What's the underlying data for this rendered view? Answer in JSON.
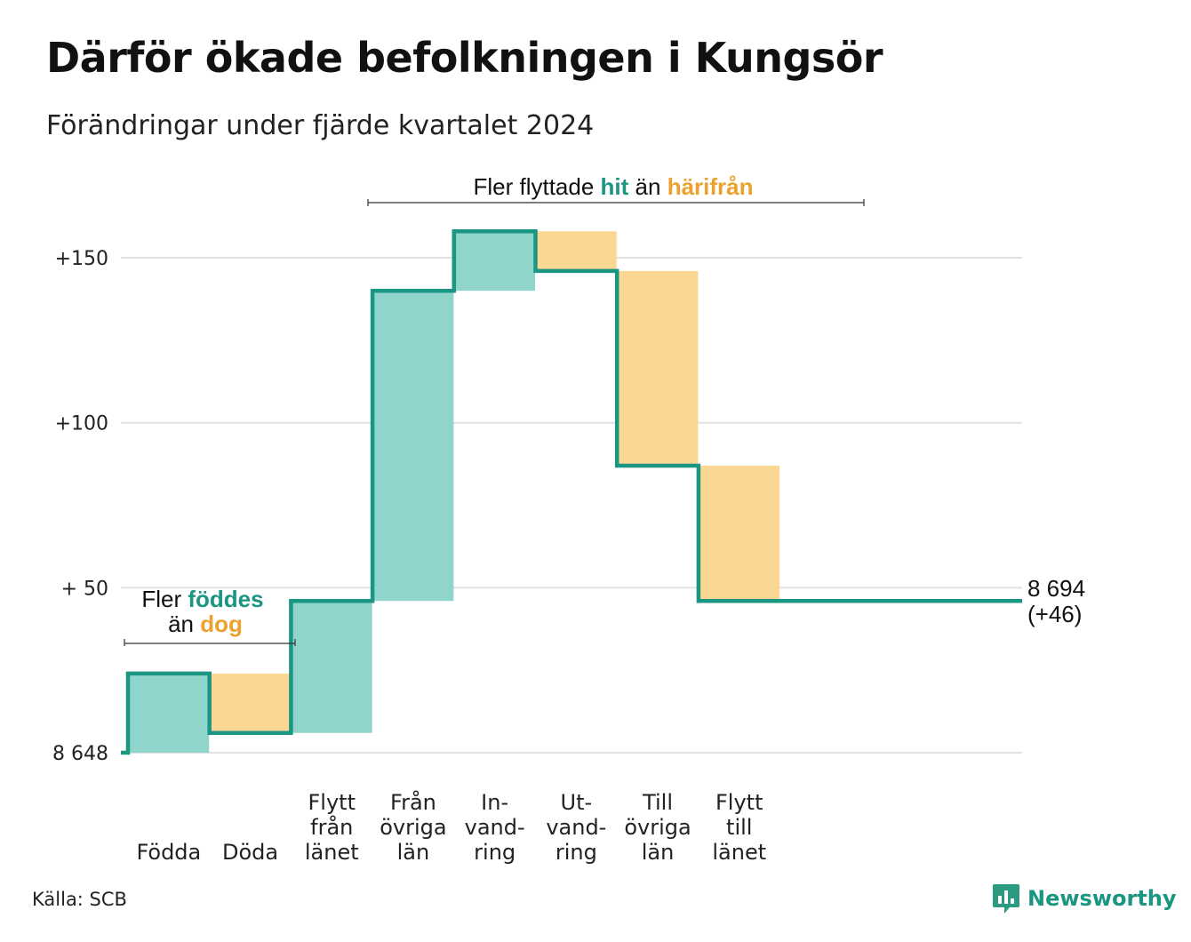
{
  "title": "Därför ökade befolkningen i Kungsör",
  "subtitle": "Förändringar under fjärde kvartalet 2024",
  "source": "Källa: SCB",
  "brand": "Newsworthy",
  "colors": {
    "increase": "#8fd5cc",
    "decrease": "#fad792",
    "line": "#1a9683",
    "highlight_increase": "#1a9683",
    "highlight_decrease": "#eba12b",
    "grid": "#e1e1e1",
    "text": "#111111"
  },
  "annotations": {
    "births": {
      "line1_prefix": "Fler ",
      "line1_highlight": "föddes",
      "line2_prefix": "än ",
      "line2_highlight": "dog"
    },
    "migration": {
      "prefix": "Fler flyttade ",
      "highlight1": "hit",
      "middle": " än ",
      "highlight2": "härifrån"
    }
  },
  "end_label": {
    "total": "8 694",
    "change": "(+46)"
  },
  "chart_data": {
    "type": "waterfall",
    "base_value": 8648,
    "end_value": 8694,
    "net_change": 46,
    "y_axis": {
      "ylim": [
        0,
        160
      ],
      "ticks": [
        {
          "value": 0,
          "label": "8 648"
        },
        {
          "value": 50,
          "label": "+ 50"
        },
        {
          "value": 100,
          "label": "+100"
        },
        {
          "value": 150,
          "label": "+150"
        }
      ]
    },
    "steps": [
      {
        "name": "Födda",
        "label_lines": [
          "Födda"
        ],
        "type": "increase",
        "from": 0,
        "to": 24
      },
      {
        "name": "Döda",
        "label_lines": [
          "Döda"
        ],
        "type": "decrease",
        "from": 24,
        "to": 6
      },
      {
        "name": "Flytt från länet",
        "label_lines": [
          "Flytt",
          "från",
          "länet"
        ],
        "type": "increase",
        "from": 6,
        "to": 46
      },
      {
        "name": "Från övriga län",
        "label_lines": [
          "Från",
          "övriga",
          "län"
        ],
        "type": "increase",
        "from": 46,
        "to": 140
      },
      {
        "name": "Invandring",
        "label_lines": [
          "In-",
          "vand-",
          "ring"
        ],
        "type": "increase",
        "from": 140,
        "to": 158
      },
      {
        "name": "Utvandring",
        "label_lines": [
          "Ut-",
          "vand-",
          "ring"
        ],
        "type": "decrease",
        "from": 158,
        "to": 146
      },
      {
        "name": "Till övriga län",
        "label_lines": [
          "Till",
          "övriga",
          "län"
        ],
        "type": "decrease",
        "from": 146,
        "to": 87
      },
      {
        "name": "Flytt till länet",
        "label_lines": [
          "Flytt",
          "till",
          "länet"
        ],
        "type": "decrease",
        "from": 87,
        "to": 46
      }
    ]
  }
}
